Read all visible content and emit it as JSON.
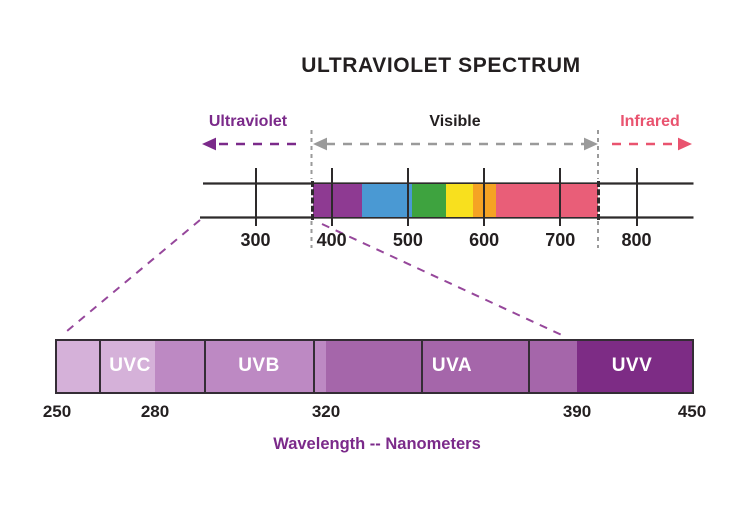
{
  "title": "ULTRAVIOLET SPECTRUM",
  "top_axis": {
    "regions": [
      {
        "id": "ultraviolet",
        "label": "Ultraviolet",
        "color": "#7b2a8a",
        "arrow_direction": "left"
      },
      {
        "id": "visible",
        "label": "Visible",
        "color": "#231f20",
        "arrow_direction": "both"
      },
      {
        "id": "infrared",
        "label": "Infrared",
        "color": "#e9536f",
        "arrow_direction": "right"
      }
    ],
    "tick_labels_nm": [
      300,
      400,
      500,
      600,
      700,
      800
    ],
    "visible_band_nm": [
      375,
      750
    ],
    "spectrum_segments": [
      {
        "name": "violet",
        "from_nm": 375,
        "to_nm": 440,
        "color": "#8e3a92"
      },
      {
        "name": "blue",
        "from_nm": 440,
        "to_nm": 505,
        "color": "#4a99d3"
      },
      {
        "name": "green",
        "from_nm": 505,
        "to_nm": 550,
        "color": "#3ea33f"
      },
      {
        "name": "yellow",
        "from_nm": 550,
        "to_nm": 585,
        "color": "#f8e01e"
      },
      {
        "name": "orange",
        "from_nm": 585,
        "to_nm": 615,
        "color": "#f5a324"
      },
      {
        "name": "red",
        "from_nm": 615,
        "to_nm": 750,
        "color": "#e95e78"
      }
    ]
  },
  "uv_bar": {
    "tick_labels_nm": [
      250,
      280,
      320,
      390,
      450
    ],
    "bands": [
      {
        "label": "UVC",
        "from_nm": 250,
        "to_nm": 280,
        "color": "#d5b1d9"
      },
      {
        "label": "UVB",
        "from_nm": 280,
        "to_nm": 320,
        "color": "#bd89c3"
      },
      {
        "label": "UVA",
        "from_nm": 320,
        "to_nm": 390,
        "color": "#a566aa"
      },
      {
        "label": "UVV",
        "from_nm": 390,
        "to_nm": 450,
        "color": "#7d2c85"
      }
    ],
    "caption": "Wavelength -- Nanometers",
    "connector_color": "#96479b"
  }
}
